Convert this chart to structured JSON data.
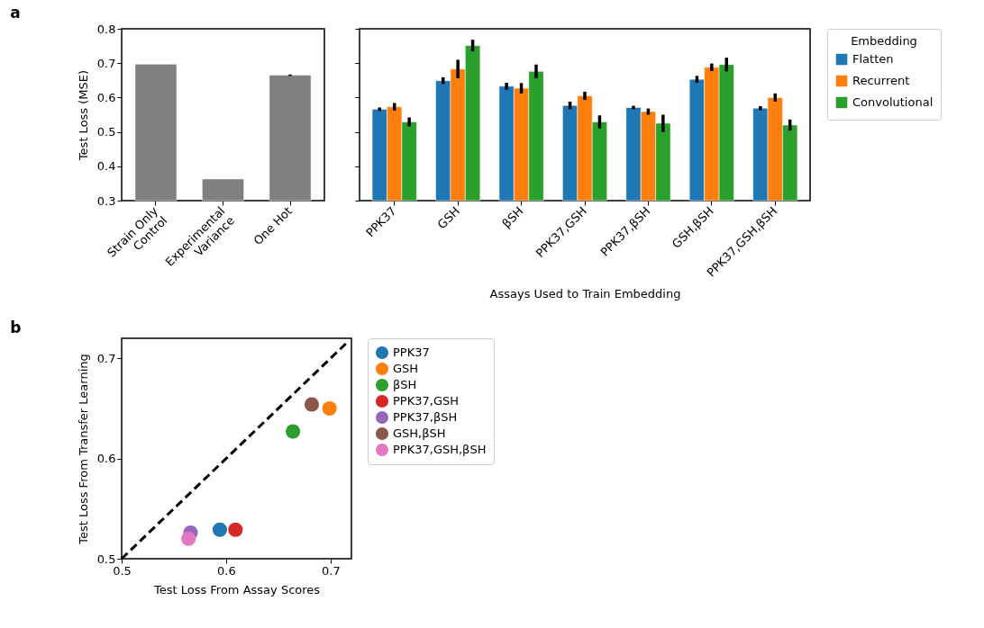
{
  "chart_data": [
    {
      "type": "bar",
      "annotations": [
        "a"
      ],
      "ylabel": "Test Loss (MSE)",
      "categories": [
        "Strain Only\nControl",
        "Experimental\nVariance",
        "One Hot"
      ],
      "values": [
        0.697,
        0.363,
        0.665
      ],
      "errors": [
        null,
        null,
        0.002
      ],
      "color": "#808080",
      "ylim": [
        0.3,
        0.8
      ],
      "yticks": [
        0.3,
        0.4,
        0.5,
        0.6,
        0.7,
        0.8
      ]
    },
    {
      "type": "bar",
      "xlabel": "Assays Used to Train Embedding",
      "legend_title": "Embedding",
      "legend": "right",
      "tick_labels": "x",
      "categories": [
        "PPK37",
        "GSH",
        "βSH",
        "PPK37,GSH",
        "PPK37,βSH",
        "GSH,βSH",
        "PPK37,GSH,βSH"
      ],
      "ylim": [
        0.3,
        0.8
      ],
      "yticks": [
        {
          "value": 0.3,
          "label": null
        },
        {
          "value": 0.4,
          "label": null
        },
        {
          "value": 0.5,
          "label": null
        },
        {
          "value": 0.6,
          "label": null
        },
        {
          "value": 0.7,
          "label": null
        },
        {
          "value": 0.8,
          "label": null
        }
      ],
      "series": [
        {
          "name": "Flatten",
          "color": "#1f77b4",
          "values": [
            0.566,
            0.649,
            0.633,
            0.577,
            0.571,
            0.653,
            0.569
          ],
          "errors": [
            0.005,
            0.01,
            0.01,
            0.011,
            0.005,
            0.01,
            0.006
          ]
        },
        {
          "name": "Recurrent",
          "color": "#ff7f0e",
          "values": [
            0.573,
            0.683,
            0.627,
            0.605,
            0.559,
            0.688,
            0.6
          ],
          "errors": [
            0.011,
            0.027,
            0.015,
            0.012,
            0.009,
            0.011,
            0.012
          ]
        },
        {
          "name": "Convolutional",
          "color": "#2ca02c",
          "values": [
            0.529,
            0.751,
            0.676,
            0.529,
            0.525,
            0.696,
            0.52
          ],
          "errors": [
            0.013,
            0.017,
            0.02,
            0.019,
            0.025,
            0.02,
            0.016
          ]
        }
      ]
    },
    {
      "type": "scatter",
      "annotations": [
        "b"
      ],
      "xlabel": "Test Loss From Assay Scores",
      "ylabel": "Test Loss From Transfer Learning",
      "xlim": [
        0.5,
        0.72
      ],
      "ylim": [
        0.5,
        0.72
      ],
      "xticks": [
        0.5,
        0.6,
        0.7
      ],
      "yticks": [
        0.5,
        0.6,
        0.7
      ],
      "legend": "right",
      "marker": "circle",
      "series": [
        {
          "type": "line",
          "color": "#000000",
          "line_style": "dashed",
          "marker": "none",
          "x": [
            0.5,
            0.715
          ],
          "values": [
            0.5,
            0.715
          ]
        },
        {
          "type": "scatter",
          "name": "PPK37",
          "color": "#1f77b4",
          "x": [
            0.594
          ],
          "values": [
            0.529
          ]
        },
        {
          "type": "scatter",
          "name": "GSH",
          "color": "#ff7f0e",
          "x": [
            0.699
          ],
          "values": [
            0.65
          ]
        },
        {
          "type": "scatter",
          "name": "βSH",
          "color": "#2ca02c",
          "x": [
            0.664
          ],
          "values": [
            0.627
          ]
        },
        {
          "type": "scatter",
          "name": "PPK37,GSH",
          "color": "#d62728",
          "x": [
            0.609
          ],
          "values": [
            0.529
          ]
        },
        {
          "type": "scatter",
          "name": "PPK37,βSH",
          "color": "#9467bd",
          "x": [
            0.566
          ],
          "values": [
            0.526
          ]
        },
        {
          "type": "scatter",
          "name": "GSH,βSH",
          "color": "#8c564b",
          "x": [
            0.682
          ],
          "values": [
            0.654
          ]
        },
        {
          "type": "scatter",
          "name": "PPK37,GSH,βSH",
          "color": "#e377c2",
          "x": [
            0.564
          ],
          "values": [
            0.52
          ]
        }
      ]
    }
  ]
}
